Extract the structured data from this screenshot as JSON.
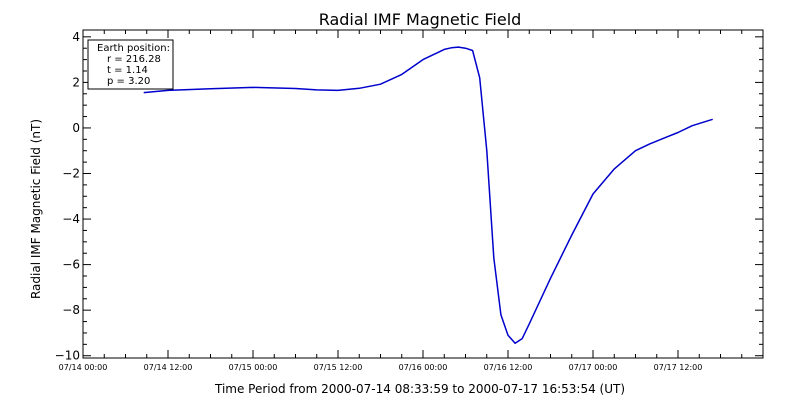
{
  "chart_data": {
    "type": "line",
    "title": "Radial IMF Magnetic Field",
    "xlabel": "Time Period from 2000-07-14 08:33:59 to 2000-07-17 16:53:54 (UT)",
    "ylabel": "Radial IMF Magnetic Field (nT)",
    "ylim": [
      -10.1,
      4.3
    ],
    "xlim": [
      "2000-07-14 00:00",
      "2000-07-18 00:00"
    ],
    "y_ticks": [
      -10,
      -8,
      -6,
      -4,
      -2,
      0,
      2,
      4
    ],
    "y_tick_labels": [
      "−10",
      "−8",
      "−6",
      "−4",
      "−2",
      "0",
      "2",
      "4"
    ],
    "x_ticks": [
      "2000-07-14 00:00",
      "2000-07-14 12:00",
      "2000-07-15 00:00",
      "2000-07-15 12:00",
      "2000-07-16 00:00",
      "2000-07-16 12:00",
      "2000-07-17 00:00",
      "2000-07-17 12:00"
    ],
    "x_tick_labels": [
      "07/14 00:00",
      "07/14 12:00",
      "07/15 00:00",
      "07/15 12:00",
      "07/16 00:00",
      "07/16 12:00",
      "07/17 00:00",
      "07/17 12:00"
    ],
    "grid": false,
    "color": "#0000cc",
    "series": [
      {
        "x": [
          "2000-07-14 08:34",
          "2000-07-14 12:00",
          "2000-07-14 18:00",
          "2000-07-15 00:00",
          "2000-07-15 06:00",
          "2000-07-15 09:00",
          "2000-07-15 12:00",
          "2000-07-15 15:00",
          "2000-07-15 18:00",
          "2000-07-15 21:00",
          "2000-07-16 00:00",
          "2000-07-16 03:00",
          "2000-07-16 04:00",
          "2000-07-16 05:00",
          "2000-07-16 06:00",
          "2000-07-16 07:00",
          "2000-07-16 08:00",
          "2000-07-16 09:00",
          "2000-07-16 10:00",
          "2000-07-16 11:00",
          "2000-07-16 12:00",
          "2000-07-16 13:00",
          "2000-07-16 14:00",
          "2000-07-16 15:00",
          "2000-07-16 18:00",
          "2000-07-16 21:00",
          "2000-07-17 00:00",
          "2000-07-17 03:00",
          "2000-07-17 06:00",
          "2000-07-17 08:00",
          "2000-07-17 10:00",
          "2000-07-17 12:00",
          "2000-07-17 14:00",
          "2000-07-17 16:54"
        ],
        "y": [
          1.55,
          1.65,
          1.72,
          1.78,
          1.73,
          1.67,
          1.65,
          1.74,
          1.92,
          2.35,
          3.0,
          3.45,
          3.52,
          3.55,
          3.5,
          3.4,
          2.2,
          -1.0,
          -5.7,
          -8.2,
          -9.1,
          -9.45,
          -9.25,
          -8.6,
          -6.6,
          -4.7,
          -2.9,
          -1.8,
          -1.0,
          -0.7,
          -0.45,
          -0.2,
          0.1,
          0.38
        ]
      }
    ],
    "legend": {
      "position": "top-left",
      "heading": "Earth position:",
      "lines": [
        "r = 216.28",
        "t = 1.14",
        "p = 3.20"
      ]
    }
  }
}
